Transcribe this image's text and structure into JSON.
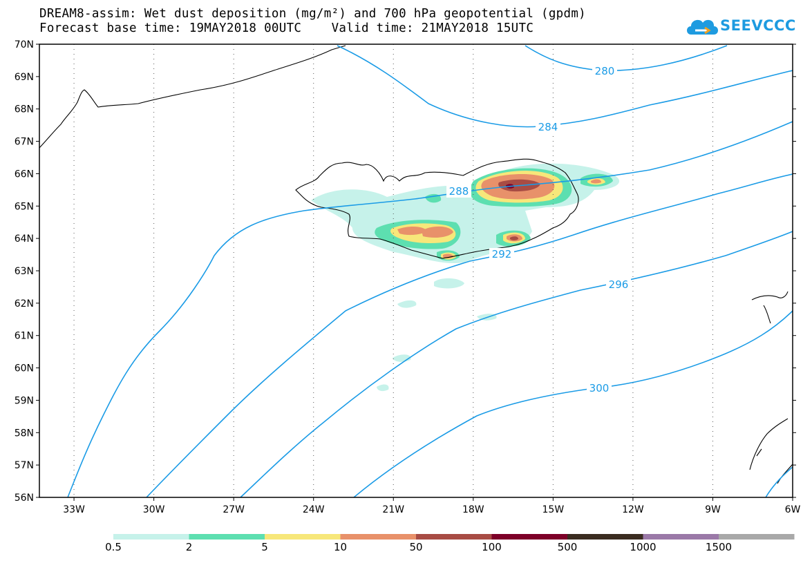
{
  "title": {
    "line1": "DREAM8-assim: Wet dust deposition (mg/m²) and 700 hPa geopotential (gpdm)",
    "line2": "Forecast base time: 19MAY2018 00UTC    Valid time: 21MAY2018 15UTC"
  },
  "logo": {
    "text": "SEEVCCC",
    "icon": "cloud-icon",
    "color": "#1e9be0"
  },
  "map": {
    "lat_labels": [
      "70N",
      "69N",
      "68N",
      "67N",
      "66N",
      "65N",
      "64N",
      "63N",
      "62N",
      "61N",
      "60N",
      "59N",
      "58N",
      "57N",
      "56N"
    ],
    "lon_labels": [
      "33W",
      "30W",
      "27W",
      "24W",
      "21W",
      "18W",
      "15W",
      "12W",
      "9W",
      "6W"
    ],
    "geopotential_contour_color": "#1a9be6",
    "contour_labels": [
      "280",
      "284",
      "288",
      "292",
      "296",
      "300"
    ]
  },
  "colorbar": {
    "colors": [
      "#c6f2ea",
      "#5ddfb0",
      "#f7e77a",
      "#e8916a",
      "#a84c44",
      "#7d0028",
      "#3a2c20",
      "#9b79a8",
      "#a9a9a9"
    ],
    "labels": [
      "0.5",
      "2",
      "5",
      "10",
      "50",
      "100",
      "500",
      "1000",
      "1500"
    ]
  }
}
